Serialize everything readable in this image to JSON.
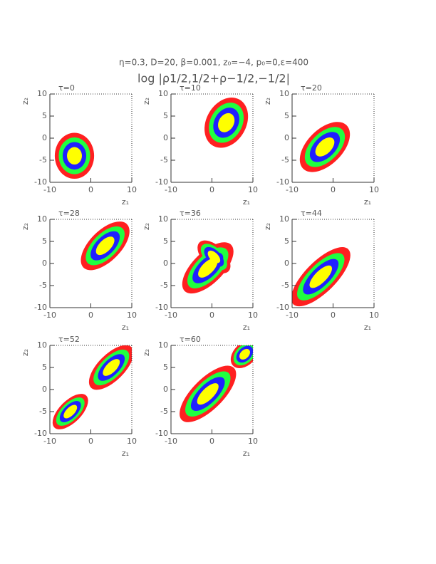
{
  "header": {
    "title": "η=0.3, D=20, β=0.001, z₀=−4, p₀=0,ε=400",
    "subtitle": "log |ρ1/2,1/2+ρ−1/2,−1/2|"
  },
  "chart_data": [
    {
      "type": "contour",
      "title": "τ=0",
      "xlabel": "z₁",
      "ylabel": "z₂",
      "xlim": [
        -10,
        10
      ],
      "ylim": [
        -10,
        10
      ],
      "xticks": [
        -10,
        0,
        10
      ],
      "yticks": [
        -10,
        -5,
        0,
        5,
        10
      ],
      "colors": [
        "#ff2020",
        "#20ff40",
        "#2020ff",
        "#ffff00"
      ],
      "blobs": [
        {
          "cx": -4,
          "cy": -4,
          "rx": 4.8,
          "ry": 5.2,
          "angle": 0
        }
      ]
    },
    {
      "type": "contour",
      "title": "τ=10",
      "xlabel": "z₁",
      "ylabel": "z₂",
      "xlim": [
        -10,
        10
      ],
      "ylim": [
        -10,
        10
      ],
      "xticks": [
        -10,
        0,
        10
      ],
      "yticks": [
        -10,
        -5,
        0,
        5,
        10
      ],
      "colors": [
        "#ff2020",
        "#20ff40",
        "#2020ff",
        "#ffff00"
      ],
      "blobs": [
        {
          "cx": 3.5,
          "cy": 3.5,
          "rx": 6.5,
          "ry": 4.5,
          "angle": 60
        }
      ]
    },
    {
      "type": "contour",
      "title": "τ=20",
      "xlabel": "z₁",
      "ylabel": "z₂",
      "xlim": [
        -10,
        10
      ],
      "ylim": [
        -10,
        10
      ],
      "xticks": [
        -10,
        0,
        10
      ],
      "yticks": [
        -10,
        -5,
        0,
        5,
        10
      ],
      "colors": [
        "#ff2020",
        "#20ff40",
        "#2020ff",
        "#ffff00"
      ],
      "blobs": [
        {
          "cx": -2,
          "cy": -2,
          "rx": 7.5,
          "ry": 4,
          "angle": 45
        }
      ]
    },
    {
      "type": "contour",
      "title": "τ=28",
      "xlabel": "z₁",
      "ylabel": "z₂",
      "xlim": [
        -10,
        10
      ],
      "ylim": [
        -10,
        10
      ],
      "xticks": [
        -10,
        0,
        10
      ],
      "yticks": [
        -10,
        -5,
        0,
        5,
        10
      ],
      "colors": [
        "#ff2020",
        "#20ff40",
        "#2020ff",
        "#ffff00"
      ],
      "blobs": [
        {
          "cx": 3.5,
          "cy": 4,
          "rx": 7.5,
          "ry": 3.5,
          "angle": 45
        }
      ]
    },
    {
      "type": "contour",
      "title": "τ=36",
      "xlabel": "z₁",
      "ylabel": "z₂",
      "xlim": [
        -10,
        10
      ],
      "ylim": [
        -10,
        10
      ],
      "xticks": [
        -10,
        0,
        10
      ],
      "yticks": [
        -10,
        -5,
        0,
        5,
        10
      ],
      "colors": [
        "#ff2020",
        "#20ff40",
        "#2020ff",
        "#ffff00"
      ],
      "blobs": [
        {
          "cx": -1,
          "cy": -1,
          "rx": 8,
          "ry": 3.5,
          "angle": 45
        },
        {
          "cx": 0.5,
          "cy": 1.5,
          "rx": 5,
          "ry": 2.5,
          "angle": -45
        }
      ]
    },
    {
      "type": "contour",
      "title": "τ=44",
      "xlabel": "z₁",
      "ylabel": "z₂",
      "xlim": [
        -10,
        10
      ],
      "ylim": [
        -10,
        10
      ],
      "xticks": [
        -10,
        0,
        10
      ],
      "yticks": [
        -10,
        -5,
        0,
        5,
        10
      ],
      "colors": [
        "#ff2020",
        "#20ff40",
        "#2020ff",
        "#ffff00"
      ],
      "blobs": [
        {
          "cx": -3,
          "cy": -3,
          "rx": 9.5,
          "ry": 3.5,
          "angle": 45
        }
      ]
    },
    {
      "type": "contour",
      "title": "τ=52",
      "xlabel": "z₁",
      "ylabel": "z₂",
      "xlim": [
        -10,
        10
      ],
      "ylim": [
        -10,
        10
      ],
      "xticks": [
        -10,
        0,
        10
      ],
      "yticks": [
        -10,
        -5,
        0,
        5,
        10
      ],
      "colors": [
        "#ff2020",
        "#20ff40",
        "#2020ff",
        "#ffff00"
      ],
      "blobs": [
        {
          "cx": 5,
          "cy": 5,
          "rx": 7,
          "ry": 3,
          "angle": 45
        },
        {
          "cx": -5,
          "cy": -5,
          "rx": 5.5,
          "ry": 2.5,
          "angle": 45
        }
      ]
    },
    {
      "type": "contour",
      "title": "τ=60",
      "xlabel": "z₁",
      "ylabel": "z₂",
      "xlim": [
        -10,
        10
      ],
      "ylim": [
        -10,
        10
      ],
      "xticks": [
        -10,
        0,
        10
      ],
      "yticks": [
        -10,
        -5,
        0,
        5,
        10
      ],
      "colors": [
        "#ff2020",
        "#20ff40",
        "#2020ff",
        "#ffff00"
      ],
      "blobs": [
        {
          "cx": -1,
          "cy": -1,
          "rx": 9,
          "ry": 3.5,
          "angle": 45
        },
        {
          "cx": 8,
          "cy": 8,
          "rx": 4,
          "ry": 2.5,
          "angle": 45
        }
      ]
    }
  ]
}
